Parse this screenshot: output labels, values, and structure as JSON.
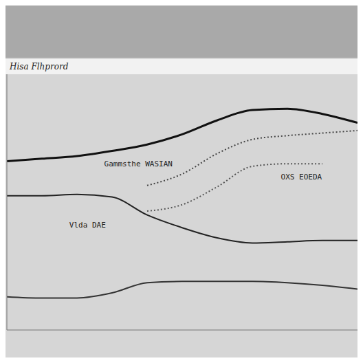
{
  "chart_data": {
    "type": "line",
    "title": "Hisa Flhprord",
    "x": [
      0,
      10,
      20,
      30,
      40,
      50,
      60,
      70,
      80,
      90,
      100
    ],
    "xlim": [
      0,
      100
    ],
    "ylim": [
      0,
      100
    ],
    "tick_labels": false,
    "grid": false,
    "series": [
      {
        "color": "#111111",
        "line_style": "solid",
        "values": [
          66,
          67,
          68,
          70,
          72.5,
          76.5,
          82,
          86,
          86.5,
          84.5,
          81
        ]
      },
      {
        "color": "#444444",
        "line_style": "dotted",
        "values": [
          null,
          null,
          null,
          null,
          56.5,
          61,
          69,
          74.5,
          76,
          77,
          78
        ]
      },
      {
        "color": "#222222",
        "line_style": "solid",
        "values": [
          52.5,
          52.5,
          53,
          52,
          45,
          40,
          36,
          34,
          34.5,
          35,
          35
        ]
      },
      {
        "color": "#555555",
        "line_style": "dotted",
        "values": [
          null,
          null,
          null,
          null,
          46.5,
          49,
          56,
          64,
          65,
          65,
          null
        ]
      },
      {
        "color": "#333333",
        "line_style": "solid",
        "values": [
          13,
          12.5,
          12.5,
          14.5,
          18.5,
          19,
          19,
          19,
          18.5,
          17.5,
          16
        ]
      }
    ],
    "annotations": [
      {
        "text": "Gammsthe WASIAN",
        "x": 37.5,
        "y": 65
      },
      {
        "text": "OXS EOEDA",
        "x": 84,
        "y": 60
      },
      {
        "text": "Vlda DAE",
        "x": 23,
        "y": 41
      }
    ]
  }
}
